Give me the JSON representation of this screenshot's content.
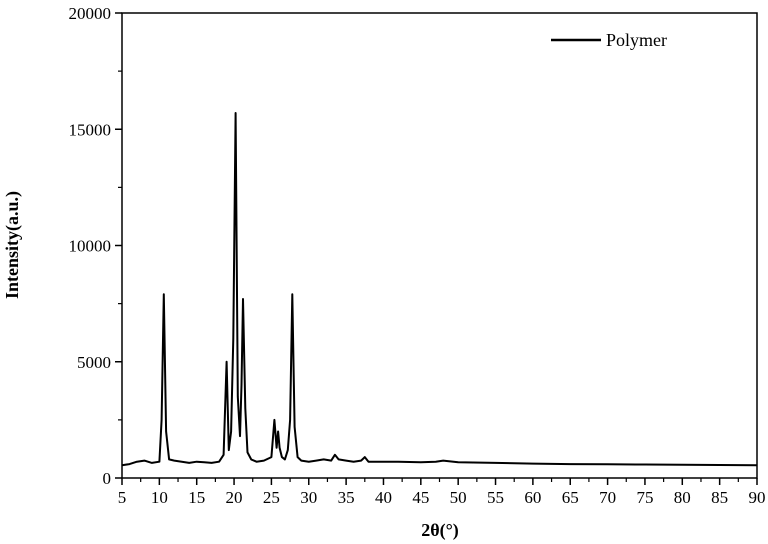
{
  "chart_data": {
    "type": "line",
    "xlabel": "2θ(°)",
    "ylabel": "Intensity(a.u.)",
    "xlim": [
      5,
      90
    ],
    "ylim": [
      0,
      20000
    ],
    "x_ticks": [
      5,
      10,
      15,
      20,
      25,
      30,
      35,
      40,
      45,
      50,
      55,
      60,
      65,
      70,
      75,
      80,
      85,
      90
    ],
    "y_ticks": [
      0,
      5000,
      10000,
      15000,
      20000
    ],
    "grid": false,
    "legend_position": "top-right",
    "series": [
      {
        "name": "Polymer",
        "color": "#000000",
        "x": [
          5,
          6,
          7,
          8,
          9,
          10,
          10.3,
          10.6,
          10.9,
          11.3,
          12,
          13,
          14,
          15,
          16,
          17,
          18,
          18.6,
          19.0,
          19.3,
          19.6,
          19.9,
          20.2,
          20.5,
          20.8,
          21.0,
          21.2,
          21.5,
          21.8,
          22.3,
          23,
          24,
          25,
          25.4,
          25.7,
          25.9,
          26.1,
          26.4,
          26.8,
          27.2,
          27.5,
          27.8,
          28.1,
          28.5,
          29,
          30,
          31,
          32,
          33,
          33.5,
          34,
          35,
          36,
          37,
          37.5,
          38,
          40,
          42,
          45,
          47,
          48,
          50,
          55,
          60,
          65,
          70,
          75,
          80,
          85,
          90
        ],
        "y": [
          550,
          600,
          700,
          750,
          650,
          700,
          2500,
          7900,
          2000,
          800,
          750,
          700,
          650,
          700,
          680,
          650,
          700,
          1000,
          5000,
          1200,
          2000,
          6000,
          15700,
          3500,
          1800,
          4000,
          7700,
          3000,
          1100,
          800,
          700,
          750,
          900,
          2500,
          1300,
          2000,
          1300,
          900,
          800,
          1200,
          2500,
          7900,
          2200,
          900,
          750,
          700,
          750,
          800,
          750,
          1000,
          800,
          750,
          700,
          750,
          900,
          700,
          700,
          700,
          680,
          700,
          750,
          680,
          650,
          620,
          600,
          590,
          580,
          570,
          560,
          550
        ]
      }
    ]
  }
}
